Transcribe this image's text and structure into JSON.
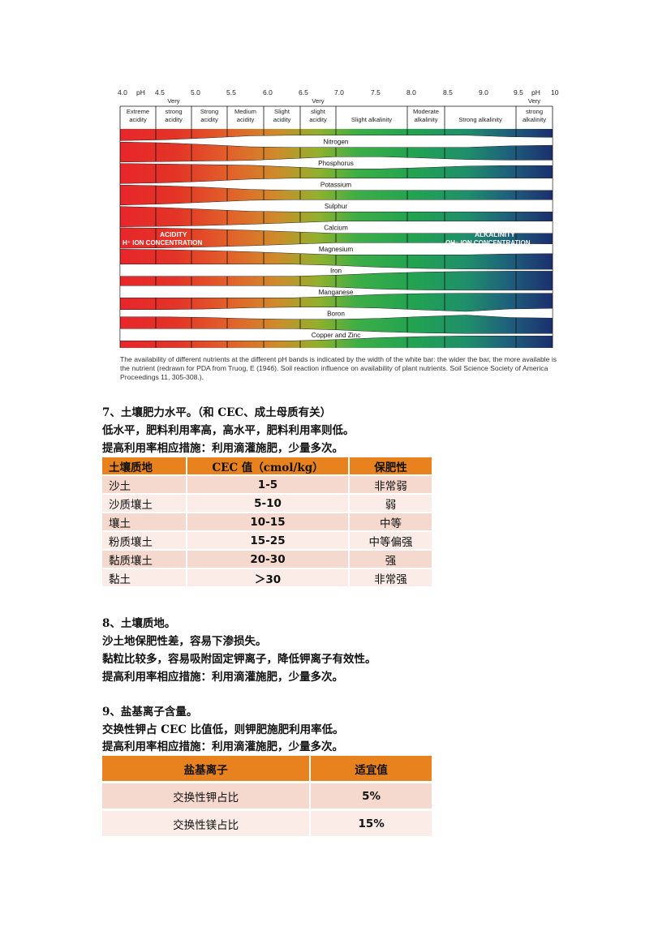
{
  "chart": {
    "ph_ticks": [
      "4.0",
      "pH",
      "4.5",
      "5.0",
      "5.5",
      "6.0",
      "6.5",
      "7.0",
      "7.5",
      "8.0",
      "8.5",
      "9.0",
      "9.5",
      "pH",
      "10"
    ],
    "bands": [
      {
        "line1": "",
        "line2": "Extreme",
        "line3": "acidity"
      },
      {
        "line1": "Very",
        "line2": "strong",
        "line3": "acidity"
      },
      {
        "line1": "",
        "line2": "Strong",
        "line3": "acidity"
      },
      {
        "line1": "",
        "line2": "Medium",
        "line3": "acidity"
      },
      {
        "line1": "",
        "line2": "Slight",
        "line3": "acidity"
      },
      {
        "line1": "Very",
        "line2": "slight",
        "line3": "acidity"
      },
      {
        "line1": "",
        "line2": "",
        "line3": "Slight alkalinity"
      },
      {
        "line1": "",
        "line2": "Moderate",
        "line3": "alkalinity"
      },
      {
        "line1": "",
        "line2": "",
        "line3": "Strong alkalinity"
      },
      {
        "line1": "Very",
        "line2": "strong",
        "line3": "alkalinity"
      }
    ],
    "nutrients": [
      "Nitrogen",
      "Phosphorus",
      "Potassium",
      "Sulphur",
      "Calcium",
      "Magnesium",
      "Iron",
      "Manganese",
      "Boron",
      "Copper and Zinc"
    ],
    "acidity_label": "ACIDITY",
    "acidity_sub": "H⁺ ION CONCENTRATION",
    "alkalinity_label": "ALKALINITY",
    "alkalinity_sub": "OH⁻ ION CONCENTRATION",
    "caption": "The availability of different nutrients at the different pH bands is indicated by the width of the white bar: the wider the bar, the more available is the nutrient (redrawn for PDA from Truog, E (1946). Soil reaction influence on availability of plant nutrients. Soil Science Society of America Proceedings 11, 305-308.).",
    "colors": {
      "red": "#e8262a",
      "orange": "#e8821e",
      "yellowgreen": "#8ab32e",
      "green": "#2ea84a",
      "teal": "#1f6f7a",
      "navy": "#1c2f6e"
    }
  },
  "section7": {
    "heading": "7、土壤肥力水平。（和 CEC、成土母质有关）",
    "line1": "低水平，肥料利用率高，高水平，肥料利用率则低。",
    "line2": "提高利用率相应措施：利用滴灌施肥，少量多次。"
  },
  "cec_table": {
    "headers": [
      "土壤质地",
      "CEC 值（cmol/kg）",
      "保肥性"
    ],
    "rows": [
      [
        "沙土",
        "1-5",
        "非常弱"
      ],
      [
        "沙质壤土",
        "5-10",
        "弱"
      ],
      [
        "壤土",
        "10-15",
        "中等"
      ],
      [
        "粉质壤土",
        "15-25",
        "中等偏强"
      ],
      [
        "黏质壤土",
        "20-30",
        "强"
      ],
      [
        "黏土",
        "＞30",
        "非常强"
      ]
    ]
  },
  "section8": {
    "heading": "8、土壤质地。",
    "line1": "沙土地保肥性差，容易下渗损失。",
    "line2": "黏粒比较多，容易吸附固定钾离子，降低钾离子有效性。",
    "line3": "提高利用率相应措施：利用滴灌施肥，少量多次。"
  },
  "section9": {
    "heading": "9、盐基离子含量。",
    "line1": "交换性钾占 CEC 比值低，则钾肥施肥利用率低。",
    "line2": "提高利用率相应措施：利用滴灌施肥，少量多次。"
  },
  "base_table": {
    "headers": [
      "盐基离子",
      "适宜值"
    ],
    "rows": [
      [
        "交换性钾占比",
        "5%"
      ],
      [
        "交换性镁占比",
        "15%"
      ]
    ]
  }
}
